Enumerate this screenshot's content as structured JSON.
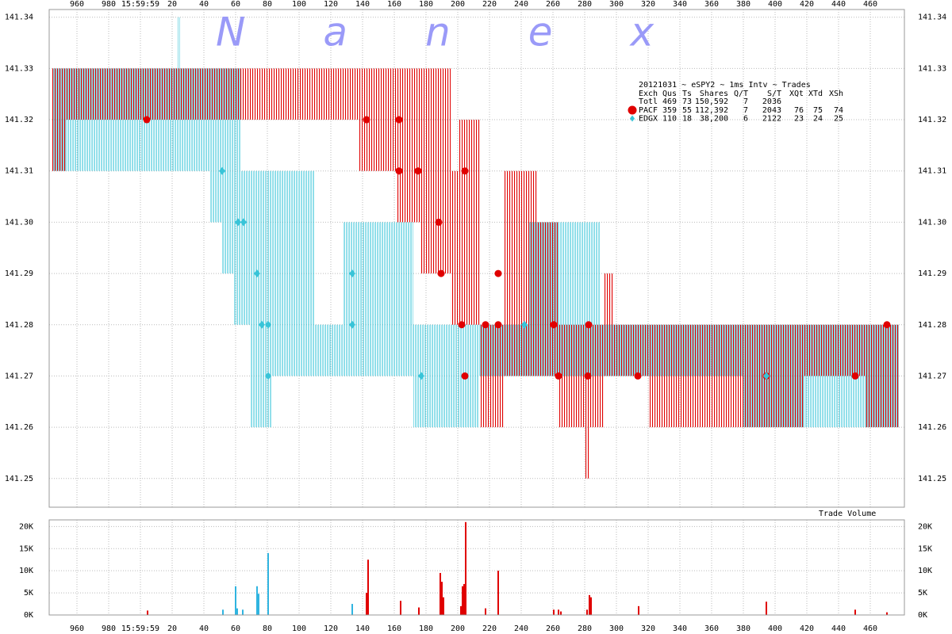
{
  "chart_data": [
    {
      "type": "quote_spread",
      "watermark": "Nanex",
      "xlim": [
        942.5,
        1481.5
      ],
      "xticks": [
        960,
        980,
        {
          "value": 1000,
          "label": "15:59:59"
        },
        {
          "value": 1020,
          "label": "20"
        },
        {
          "value": 1040,
          "label": "40"
        },
        {
          "value": 1060,
          "label": "60"
        },
        {
          "value": 1080,
          "label": "80"
        },
        {
          "value": 1100,
          "label": "100"
        },
        {
          "value": 1120,
          "label": "120"
        },
        {
          "value": 1140,
          "label": "140"
        },
        {
          "value": 1160,
          "label": "160"
        },
        {
          "value": 1180,
          "label": "180"
        },
        {
          "value": 1200,
          "label": "200"
        },
        {
          "value": 1220,
          "label": "220"
        },
        {
          "value": 1240,
          "label": "240"
        },
        {
          "value": 1260,
          "label": "260"
        },
        {
          "value": 1280,
          "label": "280"
        },
        {
          "value": 1300,
          "label": "300"
        },
        {
          "value": 1320,
          "label": "320"
        },
        {
          "value": 1340,
          "label": "340"
        },
        {
          "value": 1360,
          "label": "360"
        },
        {
          "value": 1380,
          "label": "380"
        },
        {
          "value": 1400,
          "label": "400"
        },
        {
          "value": 1420,
          "label": "420"
        },
        {
          "value": 1440,
          "label": "440"
        },
        {
          "value": 1460,
          "label": "460"
        }
      ],
      "ylim": [
        141.2444,
        141.3415
      ],
      "yticks": [
        141.25,
        141.26,
        141.27,
        141.28,
        141.29,
        {
          "value": 141.3,
          "label": "141.30"
        },
        141.31,
        141.32,
        141.33,
        141.34
      ],
      "grid": true,
      "legend": {
        "title": "20121031 ~ eSPY2 ~ 1ms Intv ~ Trades",
        "columns": [
          "Exch",
          "Qus",
          "Ts",
          "Shares",
          "Q/T",
          "S/T",
          "XQt",
          "XTd",
          "XSh"
        ],
        "total": [
          "Totl",
          "469",
          "73",
          "150,592",
          "7",
          "2036"
        ]
      },
      "series": [
        {
          "name": "PACF",
          "color": "#e00000",
          "marker": "circle",
          "stats": [
            "359",
            "55",
            "112,392",
            "7",
            "2043",
            "76",
            "75",
            "74"
          ],
          "quotes": {
            "start": [
              944.5,
              953.5,
              1138,
              1162,
              1177,
              1195.5,
              1201,
              1214,
              1229,
              1250,
              1263,
              1280,
              1283,
              1292,
              1298,
              1320,
              1379,
              1418.5,
              1456.5
            ],
            "end": [
              953.5,
              1138,
              1162,
              1177,
              1195.5,
              1201,
              1214,
              1229,
              1250,
              1263,
              1280,
              1283,
              1292,
              1298,
              1320,
              1379,
              1418.5,
              1456.5,
              1478
            ],
            "bid": [
              141.31,
              141.32,
              141.31,
              141.3,
              141.29,
              141.28,
              141.28,
              141.26,
              141.27,
              141.27,
              141.26,
              141.25,
              141.26,
              141.27,
              141.27,
              141.26,
              141.26,
              141.27,
              141.26
            ],
            "ask": [
              141.33,
              141.33,
              141.33,
              141.33,
              141.33,
              141.31,
              141.32,
              141.28,
              141.31,
              141.3,
              141.28,
              141.28,
              141.28,
              141.29,
              141.28,
              141.28,
              141.28,
              141.28,
              141.28
            ]
          },
          "trades": {
            "x": [
              1004,
              1142.5,
              1163,
              1163,
              1175,
              1188,
              1189.5,
              1202.5,
              1204.5,
              1204.5,
              1217.5,
              1225.5,
              1225.5,
              1260.5,
              1263.5,
              1282,
              1282.5,
              1313.5,
              1394.5,
              1450.5,
              1470.5
            ],
            "y": [
              141.32,
              141.32,
              141.32,
              141.31,
              141.31,
              141.3,
              141.29,
              141.28,
              141.27,
              141.31,
              141.28,
              141.29,
              141.28,
              141.28,
              141.27,
              141.27,
              141.28,
              141.27,
              141.27,
              141.27,
              141.28
            ]
          }
        },
        {
          "name": "EDGX",
          "color": "#38c4d8",
          "marker": "diamond",
          "stats": [
            "110",
            "18",
            "38,200",
            "6",
            "2122",
            "23",
            "24",
            "25"
          ],
          "quotes": {
            "start": [
              944.5,
              953.5,
              1023.5,
              1044,
              1051.5,
              1059,
              1069,
              1083,
              1110,
              1128,
              1172,
              1213,
              1245,
              1290,
              1380
            ],
            "end": [
              953.5,
              1063,
              1025,
              1051.5,
              1059,
              1069,
              1083,
              1110,
              1128,
              1172,
              1213,
              1245,
              1290,
              1380,
              1478
            ],
            "bid": [
              141.31,
              141.31,
              141.33,
              141.3,
              141.29,
              141.28,
              141.26,
              141.27,
              141.27,
              141.27,
              141.26,
              141.27,
              141.27,
              141.27,
              141.26
            ],
            "ask": [
              141.33,
              141.33,
              141.34,
              141.31,
              141.31,
              141.31,
              141.31,
              141.31,
              141.28,
              141.3,
              141.28,
              141.28,
              141.3,
              141.28,
              141.28
            ]
          },
          "trades": {
            "x": [
              1051.5,
              1061.5,
              1065,
              1073.5,
              1076.5,
              1080.5,
              1080.5,
              1133.5,
              1133.5,
              1177,
              1242,
              1394.5
            ],
            "y": [
              141.31,
              141.3,
              141.3,
              141.29,
              141.28,
              141.28,
              141.27,
              141.29,
              141.28,
              141.27,
              141.28,
              141.27
            ]
          }
        }
      ]
    },
    {
      "type": "bar",
      "title": "Trade Volume",
      "xlim": [
        942.5,
        1481.5
      ],
      "xticks": [
        960,
        980,
        {
          "value": 1000,
          "label": "15:59:59"
        },
        {
          "value": 1020,
          "label": "20"
        },
        {
          "value": 1040,
          "label": "40"
        },
        {
          "value": 1060,
          "label": "60"
        },
        {
          "value": 1080,
          "label": "80"
        },
        {
          "value": 1100,
          "label": "100"
        },
        {
          "value": 1120,
          "label": "120"
        },
        {
          "value": 1140,
          "label": "140"
        },
        {
          "value": 1160,
          "label": "160"
        },
        {
          "value": 1180,
          "label": "180"
        },
        {
          "value": 1200,
          "label": "200"
        },
        {
          "value": 1220,
          "label": "220"
        },
        {
          "value": 1240,
          "label": "240"
        },
        {
          "value": 1260,
          "label": "260"
        },
        {
          "value": 1280,
          "label": "280"
        },
        {
          "value": 1300,
          "label": "300"
        },
        {
          "value": 1320,
          "label": "320"
        },
        {
          "value": 1340,
          "label": "340"
        },
        {
          "value": 1360,
          "label": "360"
        },
        {
          "value": 1380,
          "label": "380"
        },
        {
          "value": 1400,
          "label": "400"
        },
        {
          "value": 1420,
          "label": "420"
        },
        {
          "value": 1440,
          "label": "440"
        },
        {
          "value": 1460,
          "label": "460"
        }
      ],
      "ylim": [
        0,
        21500
      ],
      "yticks": [
        {
          "value": 0,
          "label": "0K"
        },
        {
          "value": 5000,
          "label": "5K"
        },
        {
          "value": 10000,
          "label": "10K"
        },
        {
          "value": 15000,
          "label": "15K"
        },
        {
          "value": 20000,
          "label": "20K"
        }
      ],
      "grid": true,
      "series": [
        {
          "color": "#e00000",
          "x": [
            1004.5,
            1142.5,
            1143.5,
            1164,
            1175.5,
            1189,
            1190,
            1191,
            1202,
            1203,
            1204,
            1205,
            1217.5,
            1225.5,
            1260.5,
            1263.5,
            1265,
            1281.5,
            1283,
            1284,
            1314,
            1394.5,
            1450.5,
            1470.5
          ],
          "values": [
            1000,
            5000,
            12500,
            3200,
            1700,
            9500,
            7500,
            4000,
            2000,
            6500,
            7000,
            21000,
            1500,
            10000,
            1200,
            1200,
            800,
            1200,
            4500,
            4000,
            2000,
            3000,
            1200,
            600
          ]
        },
        {
          "color": "#30b4e0",
          "x": [
            1052,
            1060,
            1061,
            1064.5,
            1073.5,
            1074.5,
            1080.5,
            1133.5
          ],
          "values": [
            1200,
            6500,
            1500,
            1200,
            6500,
            4800,
            14000,
            2500
          ]
        }
      ]
    }
  ]
}
